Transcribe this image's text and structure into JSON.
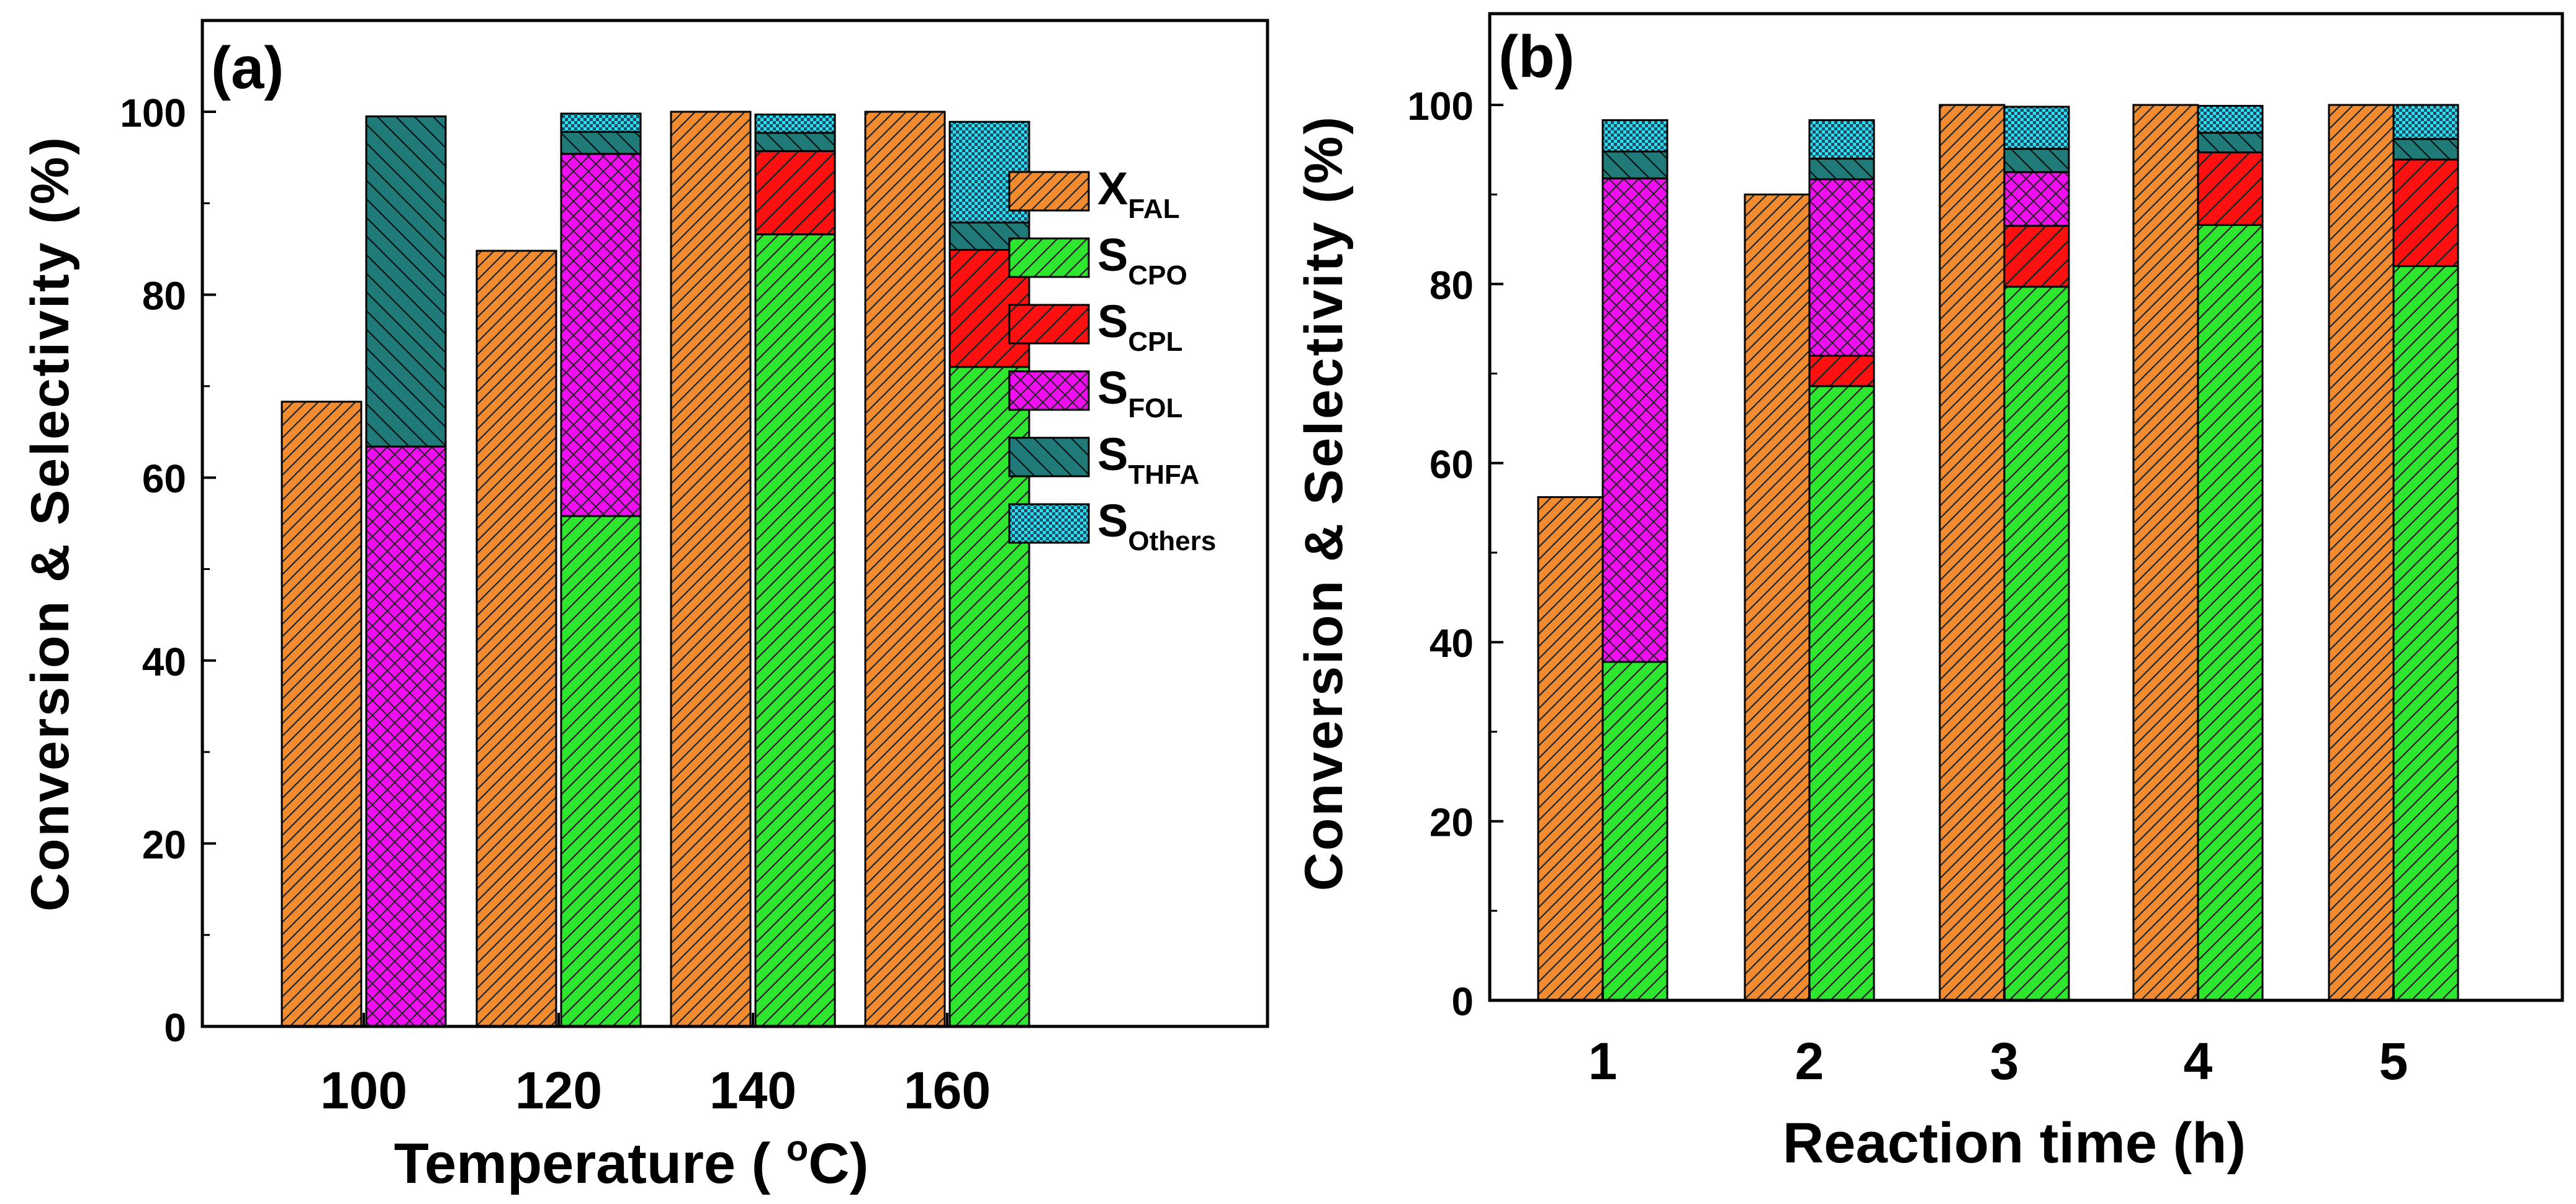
{
  "figure": {
    "panels": [
      "a",
      "b"
    ]
  },
  "chart_data": [
    {
      "type": "bar",
      "stacked_groups": true,
      "panel_label": "(a)",
      "xlabel_main": "Temperature ( ",
      "xlabel_sup": "o",
      "xlabel_tail": "C)",
      "ylabel": "Conversion & Selectivity (%)",
      "ylim": [
        0,
        110
      ],
      "yticks": [
        0,
        20,
        40,
        60,
        80,
        100
      ],
      "categories": [
        "100",
        "120",
        "140",
        "160"
      ],
      "conversion": {
        "name": "X_FAL",
        "values": [
          68.3,
          84.8,
          100.0,
          100.0
        ]
      },
      "selectivity_stack": [
        {
          "name": "S_CPO",
          "values": [
            0.0,
            55.8,
            86.6,
            72.1
          ]
        },
        {
          "name": "S_CPL",
          "values": [
            0.0,
            0.0,
            9.1,
            12.8
          ]
        },
        {
          "name": "S_FOL",
          "values": [
            63.4,
            39.6,
            0.0,
            0.0
          ]
        },
        {
          "name": "S_THFA",
          "values": [
            36.1,
            2.4,
            2.0,
            3.0
          ]
        },
        {
          "name": "S_Others",
          "values": [
            0.0,
            2.0,
            2.0,
            11.0
          ]
        }
      ],
      "legend": [
        {
          "key": "X",
          "sub": "FAL"
        },
        {
          "key": "S",
          "sub": "CPO"
        },
        {
          "key": "S",
          "sub": "CPL"
        },
        {
          "key": "S",
          "sub": "FOL"
        },
        {
          "key": "S",
          "sub": "THFA"
        },
        {
          "key": "S",
          "sub": "Others"
        }
      ]
    },
    {
      "type": "bar",
      "stacked_groups": true,
      "panel_label": "(b)",
      "xlabel": "Reaction time (h)",
      "ylabel": "Conversion & Selectivity (%)",
      "ylim": [
        0,
        110
      ],
      "yticks": [
        0,
        20,
        40,
        60,
        80,
        100
      ],
      "categories": [
        "1",
        "2",
        "3",
        "4",
        "5"
      ],
      "conversion": {
        "name": "X_FAL",
        "values": [
          56.2,
          90.0,
          100.0,
          100.0,
          100.0
        ]
      },
      "selectivity_stack": [
        {
          "name": "S_CPO",
          "values": [
            37.8,
            68.6,
            79.7,
            86.6,
            82.0
          ]
        },
        {
          "name": "S_CPL",
          "values": [
            0.0,
            3.4,
            6.8,
            8.1,
            11.9
          ]
        },
        {
          "name": "S_FOL",
          "values": [
            54.0,
            19.7,
            6.0,
            0.0,
            0.0
          ]
        },
        {
          "name": "S_THFA",
          "values": [
            3.0,
            2.3,
            2.6,
            2.2,
            2.3
          ]
        },
        {
          "name": "S_Others",
          "values": [
            3.5,
            4.3,
            4.7,
            3.0,
            3.8
          ]
        }
      ]
    }
  ],
  "colors": {
    "X_FAL": "#f28b30",
    "S_CPO": "#2ee62e",
    "S_CPL": "#ff1010",
    "S_FOL": "#f00ff0",
    "S_THFA": "#1f7a78",
    "S_Others": "#27e1f0"
  }
}
